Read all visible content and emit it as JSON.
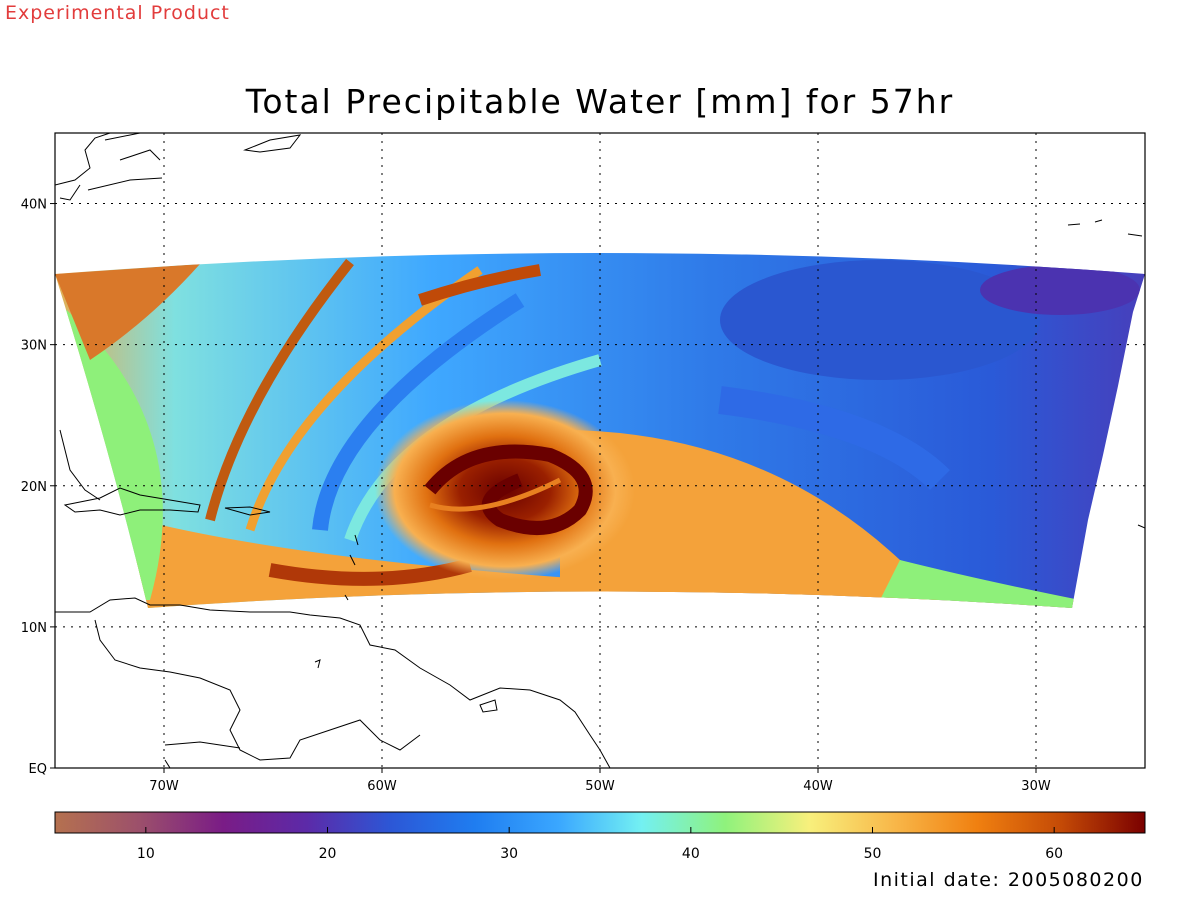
{
  "banner": {
    "text": "Experimental Product",
    "color": "#e23c3c"
  },
  "title": "Total Precipitable Water [mm] for 57hr",
  "initial_date": "Initial date: 2005080200",
  "map": {
    "lon_range": [
      -75,
      -25
    ],
    "lat_range": [
      0,
      45
    ],
    "lat_ticks": [
      {
        "value": 0,
        "label": "EQ"
      },
      {
        "value": 10,
        "label": "10N"
      },
      {
        "value": 20,
        "label": "20N"
      },
      {
        "value": 30,
        "label": "30N"
      },
      {
        "value": 40,
        "label": "40N"
      }
    ],
    "lon_ticks": [
      {
        "value": -70,
        "label": "70W"
      },
      {
        "value": -60,
        "label": "60W"
      },
      {
        "value": -50,
        "label": "50W"
      },
      {
        "value": -40,
        "label": "40W"
      },
      {
        "value": -30,
        "label": "30W"
      }
    ],
    "grid": "dotted",
    "feature": "hurricane vortex centered near 21N 52W"
  },
  "colorbar": {
    "range": [
      5,
      65
    ],
    "ticks": [
      "10",
      "20",
      "30",
      "40",
      "50",
      "60"
    ],
    "tick_values": [
      10,
      20,
      30,
      40,
      50,
      60
    ],
    "colors": [
      "#b5714f",
      "#9c506b",
      "#7a1c86",
      "#5c2aa8",
      "#2c57d6",
      "#1f7df0",
      "#3aa7ff",
      "#73f0f2",
      "#8ff27c",
      "#f8f07c",
      "#f8b84a",
      "#f08010",
      "#c44a06",
      "#7a0000"
    ]
  }
}
